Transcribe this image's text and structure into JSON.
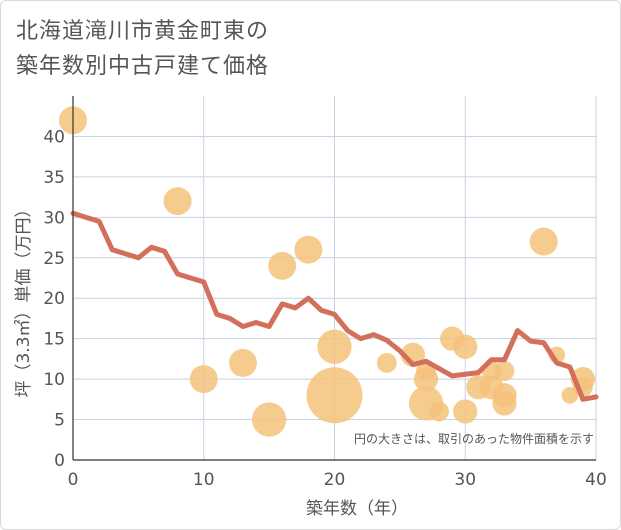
{
  "title_line1": "北海道滝川市黄金町東の",
  "title_line2": "築年数別中古戸建て価格",
  "chart_data": {
    "type": "scatter",
    "title": "北海道滝川市黄金町東の築年数別中古戸建て価格",
    "xlabel": "築年数（年）",
    "ylabel": "坪（3.3㎡）単価（万円）",
    "xlim": [
      0,
      40
    ],
    "ylim": [
      0,
      45
    ],
    "x_ticks": [
      0,
      10,
      20,
      30,
      40
    ],
    "y_ticks": [
      0,
      5,
      10,
      15,
      20,
      25,
      30,
      35,
      40
    ],
    "grid": true,
    "note": "円の大きさは、取引のあった物件面積を示す",
    "colors": {
      "bubble": "#f5c27a",
      "line": "#d3705c",
      "grid": "#c5d3e2"
    },
    "bubbles": [
      {
        "x": 0,
        "y": 42,
        "size": 2
      },
      {
        "x": 8,
        "y": 32,
        "size": 2
      },
      {
        "x": 10,
        "y": 10,
        "size": 2
      },
      {
        "x": 13,
        "y": 12,
        "size": 2
      },
      {
        "x": 15,
        "y": 5,
        "size": 3
      },
      {
        "x": 16,
        "y": 24,
        "size": 2
      },
      {
        "x": 18,
        "y": 26,
        "size": 2
      },
      {
        "x": 20,
        "y": 14,
        "size": 3
      },
      {
        "x": 20,
        "y": 8,
        "size": 8
      },
      {
        "x": 24,
        "y": 12,
        "size": 1
      },
      {
        "x": 26,
        "y": 13,
        "size": 1.5
      },
      {
        "x": 27,
        "y": 11,
        "size": 1
      },
      {
        "x": 27,
        "y": 10,
        "size": 1.5
      },
      {
        "x": 27,
        "y": 7,
        "size": 3
      },
      {
        "x": 28,
        "y": 6,
        "size": 1
      },
      {
        "x": 29,
        "y": 15,
        "size": 1.5
      },
      {
        "x": 30,
        "y": 14,
        "size": 1.5
      },
      {
        "x": 30,
        "y": 6,
        "size": 1.5
      },
      {
        "x": 31,
        "y": 9,
        "size": 1.5
      },
      {
        "x": 32,
        "y": 11,
        "size": 1
      },
      {
        "x": 32,
        "y": 9,
        "size": 1.5
      },
      {
        "x": 33,
        "y": 11,
        "size": 1
      },
      {
        "x": 33,
        "y": 8,
        "size": 1.5
      },
      {
        "x": 33,
        "y": 7,
        "size": 1.5
      },
      {
        "x": 36,
        "y": 27,
        "size": 2
      },
      {
        "x": 37,
        "y": 13,
        "size": 0.7
      },
      {
        "x": 38,
        "y": 8,
        "size": 0.7
      },
      {
        "x": 39,
        "y": 10,
        "size": 1.5
      },
      {
        "x": 39,
        "y": 9,
        "size": 1
      }
    ],
    "trend": {
      "x": [
        0,
        1,
        2,
        3,
        4,
        5,
        6,
        7,
        8,
        9,
        10,
        11,
        12,
        13,
        14,
        15,
        16,
        17,
        18,
        19,
        20,
        21,
        22,
        23,
        24,
        25,
        26,
        27,
        28,
        29,
        30,
        31,
        32,
        33,
        34,
        35,
        36,
        37,
        38,
        39,
        40
      ],
      "y": [
        30.5,
        30,
        29.5,
        26,
        25.5,
        25,
        26.3,
        25.8,
        23,
        22.5,
        22,
        18,
        17.5,
        16.5,
        17,
        16.5,
        19.3,
        18.8,
        20,
        18.5,
        18,
        16,
        15,
        15.5,
        14.8,
        13.5,
        11.8,
        12.2,
        11.3,
        10.4,
        10.6,
        10.8,
        12.4,
        12.4,
        16,
        14.7,
        14.5,
        12,
        11.5,
        7.5,
        7.8
      ]
    }
  }
}
